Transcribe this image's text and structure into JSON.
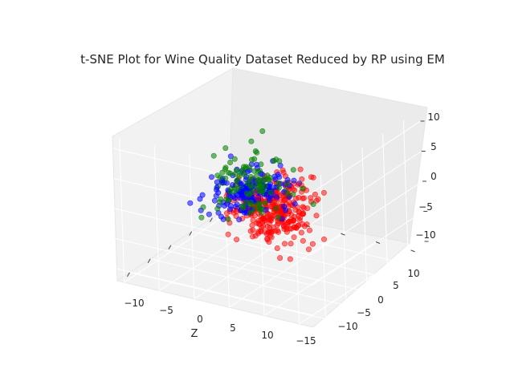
{
  "chart_data": {
    "type": "scatter",
    "projection": "3d",
    "title": "t-SNE Plot for Wine Quality Dataset Reduced by RP using EM",
    "xlabel": "Z",
    "ylabel": "",
    "zlabel": "",
    "x_ticks": [
      "−10",
      "−5",
      "0",
      "5",
      "10"
    ],
    "y_ticks": [
      "−15",
      "−10",
      "−5",
      "0",
      "5",
      "10"
    ],
    "z_ticks": [
      "−10",
      "−5",
      "0",
      "5",
      "10"
    ],
    "xlim": [
      -13,
      14
    ],
    "ylim": [
      -16,
      12
    ],
    "zlim": [
      -12,
      12
    ],
    "grid": true,
    "legend": "none",
    "series": [
      {
        "color": "#ff0000",
        "alpha": 0.5,
        "approx_points": 320,
        "x_range": [
          -12,
          6
        ],
        "y_range": [
          -6,
          8
        ],
        "z_range": [
          -7,
          7
        ]
      },
      {
        "color": "#0000ff",
        "alpha": 0.55,
        "approx_points": 170,
        "x_range": [
          -7,
          10
        ],
        "y_range": [
          -12,
          2
        ],
        "z_range": [
          -5,
          4
        ]
      },
      {
        "color": "#008000",
        "alpha": 0.55,
        "approx_points": 110,
        "x_range": [
          -4,
          13
        ],
        "y_range": [
          -15,
          0
        ],
        "z_range": [
          -9,
          6
        ]
      }
    ]
  }
}
